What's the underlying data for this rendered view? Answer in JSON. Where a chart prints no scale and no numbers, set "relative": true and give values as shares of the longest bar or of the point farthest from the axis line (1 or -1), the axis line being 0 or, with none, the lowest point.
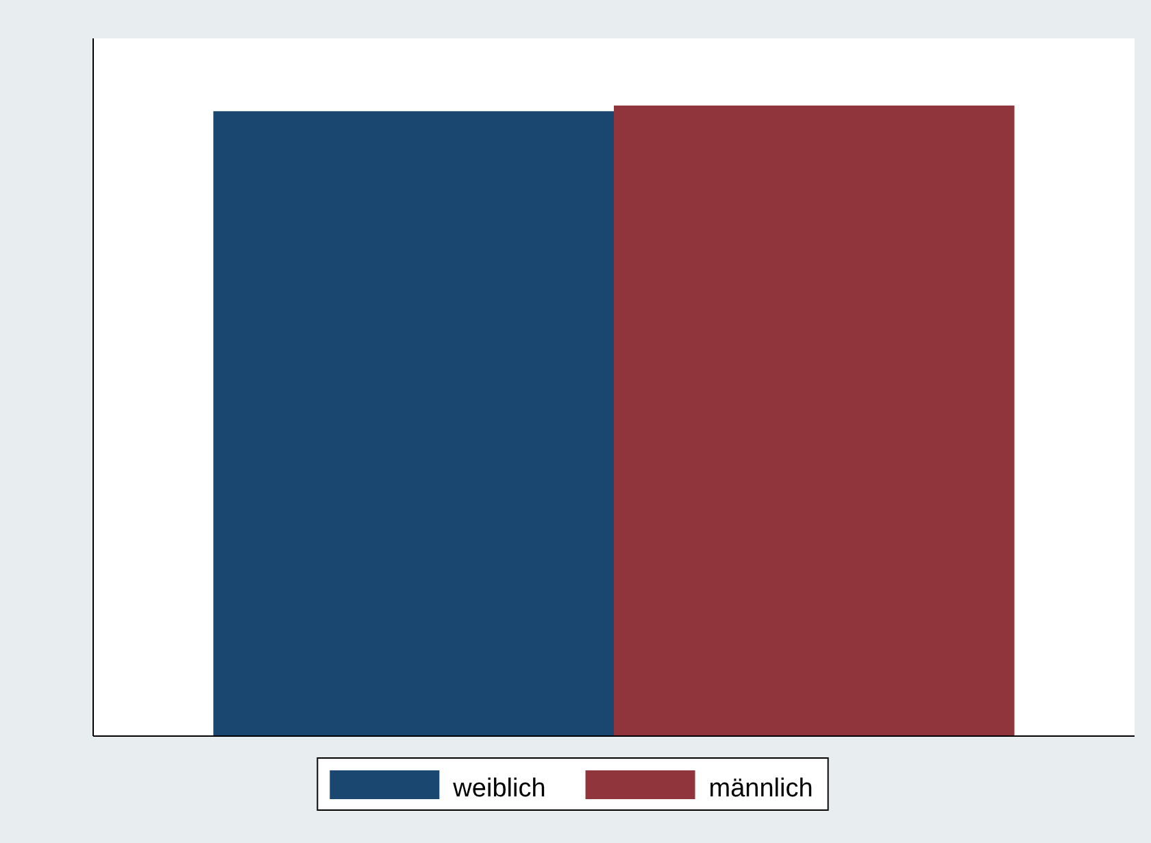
{
  "chart_data": {
    "type": "bar",
    "relative": true,
    "categories": [
      null
    ],
    "legend": "bottom",
    "series": [
      {
        "name": "weiblich",
        "color": "#1a476f",
        "values": [
          0.991
        ]
      },
      {
        "name": "männlich",
        "color": "#90353b",
        "values": [
          1
        ]
      }
    ]
  }
}
